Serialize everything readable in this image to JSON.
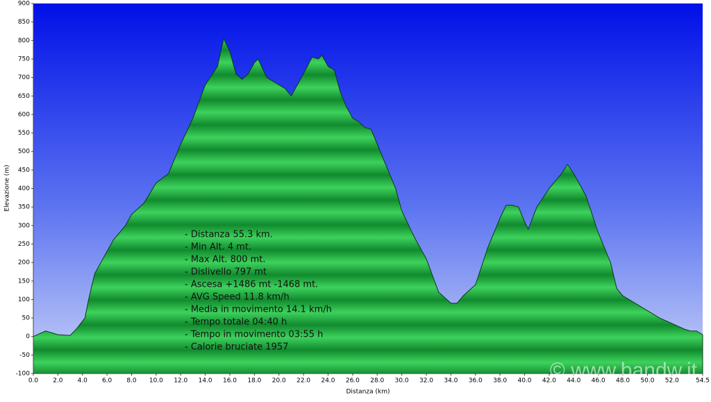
{
  "chart_data": {
    "type": "area",
    "xlabel": "Distanza   (km)",
    "ylabel": "Elevazione (m)",
    "x": [
      0,
      1,
      2,
      3,
      3.5,
      4.2,
      4.5,
      5,
      5.5,
      6,
      6.5,
      7,
      7.5,
      8,
      9,
      10,
      11,
      12,
      13,
      14,
      15,
      15.5,
      16,
      16.5,
      17,
      17.5,
      18,
      18.3,
      19,
      20,
      20.5,
      21,
      21.5,
      22,
      22.7,
      23.2,
      23.5,
      24,
      24.5,
      25,
      25.5,
      26,
      26.5,
      27,
      27.5,
      28,
      28.5,
      29,
      29.5,
      30,
      31,
      32,
      33,
      34,
      34.5,
      35,
      36,
      37,
      38,
      38.5,
      39,
      39.5,
      40,
      40.3,
      41,
      42,
      43,
      43.5,
      44,
      45,
      46,
      47,
      47.5,
      48,
      49,
      50,
      51,
      52,
      53,
      53.5,
      54,
      54.5
    ],
    "values": [
      0,
      15,
      5,
      3,
      20,
      50,
      100,
      170,
      200,
      230,
      260,
      280,
      300,
      330,
      360,
      415,
      440,
      520,
      590,
      680,
      730,
      805,
      770,
      710,
      695,
      710,
      740,
      750,
      700,
      680,
      670,
      650,
      680,
      710,
      755,
      750,
      760,
      730,
      720,
      660,
      620,
      590,
      580,
      565,
      560,
      520,
      480,
      440,
      400,
      340,
      270,
      210,
      120,
      90,
      90,
      110,
      140,
      240,
      320,
      355,
      355,
      350,
      310,
      290,
      350,
      400,
      440,
      465,
      440,
      380,
      280,
      200,
      130,
      110,
      90,
      70,
      50,
      35,
      20,
      15,
      15,
      5
    ],
    "xlim": [
      0,
      54.5
    ],
    "ylim": [
      -100,
      900
    ],
    "yticks": [
      -100,
      -50,
      0,
      50,
      100,
      150,
      200,
      250,
      300,
      350,
      400,
      450,
      500,
      550,
      600,
      650,
      700,
      750,
      800,
      850,
      900
    ],
    "xticks": [
      {
        "value": 0,
        "label": "0.0"
      },
      {
        "value": 2,
        "label": "2.0"
      },
      {
        "value": 4,
        "label": "4.0"
      },
      {
        "value": 6,
        "label": "6.0"
      },
      {
        "value": 8,
        "label": "8.0"
      },
      {
        "value": 10,
        "label": "10.0"
      },
      {
        "value": 12,
        "label": "12.0"
      },
      {
        "value": 14,
        "label": "14.0"
      },
      {
        "value": 16,
        "label": "16.0"
      },
      {
        "value": 18,
        "label": "18.0"
      },
      {
        "value": 20,
        "label": "20.0"
      },
      {
        "value": 22,
        "label": "22.0"
      },
      {
        "value": 24,
        "label": "24.0"
      },
      {
        "value": 26,
        "label": "26.0"
      },
      {
        "value": 28,
        "label": "28.0"
      },
      {
        "value": 30,
        "label": "30.0"
      },
      {
        "value": 32,
        "label": "32.0"
      },
      {
        "value": 34,
        "label": "34.0"
      },
      {
        "value": 36,
        "label": "36.0"
      },
      {
        "value": 38,
        "label": "38.0"
      },
      {
        "value": 40,
        "label": "40.0"
      },
      {
        "value": 42,
        "label": "42.0"
      },
      {
        "value": 44,
        "label": "44.0"
      },
      {
        "value": 46,
        "label": "46.0"
      },
      {
        "value": 48,
        "label": "48.0"
      },
      {
        "value": 50,
        "label": "50.0"
      },
      {
        "value": 52,
        "label": "52.0"
      },
      {
        "value": 54.5,
        "label": "54.5"
      }
    ],
    "color": "#1a9a3a",
    "annotations": [
      "- Distanza 55.3 km.",
      "- Min Alt. 4 mt.",
      "- Max Alt. 800 mt.",
      "- Dislivello 797 mt",
      "- Ascesa +1486 mt -1468 mt.",
      "- AVG Speed 11.8 km/h",
      "- Media in movimento 14.1 km/h",
      "- Tempo totale 04:40 h",
      "- Tempo in movimento 03:55 h",
      "- Calorie bruciate 1957"
    ],
    "watermark": "© www.bandw.it"
  }
}
